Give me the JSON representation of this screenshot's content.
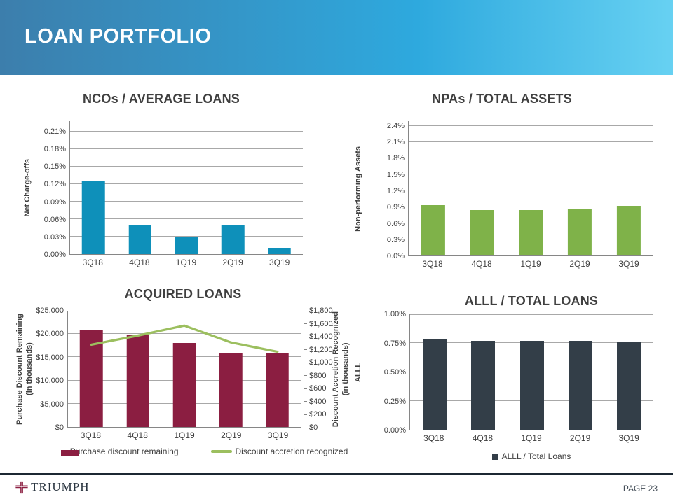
{
  "header": {
    "title": "LOAN PORTFOLIO"
  },
  "footer": {
    "brand": "TRIUMPH",
    "page_label": "PAGE 23"
  },
  "palette": {
    "header_gradient_left": "#3C7EAC",
    "header_gradient_mid": "#2EA9DE",
    "header_gradient_right": "#67D1F2",
    "ncos_bar": "#0E90BA",
    "npas_bar": "#7FB249",
    "purchase_discount_bar": "#8B1E41",
    "accretion_line": "#9CBF5F",
    "alll_bar": "#333E48",
    "footer_divider": "#1C2833",
    "logo_cross": "#8B1E41",
    "chart_text": "#404040"
  },
  "chart_data": [
    {
      "id": "ncos",
      "type": "bar",
      "title": "NCOs / AVERAGE LOANS",
      "ylabel": "Net Charge-offs",
      "categories": [
        "3Q18",
        "4Q18",
        "1Q19",
        "2Q19",
        "3Q19"
      ],
      "values": [
        0.125,
        0.05,
        0.03,
        0.05,
        0.01
      ],
      "bar_color": "#0E90BA",
      "grid": true,
      "yaxis": {
        "max": 0.228,
        "ticks": [
          0,
          0.03,
          0.06,
          0.09,
          0.12,
          0.15,
          0.18,
          0.21
        ],
        "tick_labels": [
          "0.00%",
          "0.03%",
          "0.06%",
          "0.09%",
          "0.12%",
          "0.15%",
          "0.18%",
          "0.21%"
        ]
      }
    },
    {
      "id": "npas",
      "type": "bar",
      "title": "NPAs / TOTAL ASSETS",
      "ylabel": "Non-performing Assets",
      "categories": [
        "3Q18",
        "4Q18",
        "1Q19",
        "2Q19",
        "3Q19"
      ],
      "values": [
        0.93,
        0.84,
        0.84,
        0.87,
        0.92
      ],
      "bar_color": "#7FB249",
      "grid": true,
      "yaxis": {
        "max": 2.49,
        "ticks": [
          0,
          0.3,
          0.6,
          0.9,
          1.2,
          1.5,
          1.8,
          2.1,
          2.4
        ],
        "tick_labels": [
          "0.0%",
          "0.3%",
          "0.6%",
          "0.9%",
          "1.2%",
          "1.5%",
          "1.8%",
          "2.1%",
          "2.4%"
        ]
      }
    },
    {
      "id": "acquired",
      "type": "bar+line",
      "title": "ACQUIRED LOANS",
      "ylabel_left": {
        "line1": "Purchase Discount Remaining",
        "line2": "(in thousands)"
      },
      "ylabel_right": {
        "line1": "Discount Accretion Recognized",
        "line2": "(in thousands)"
      },
      "categories": [
        "3Q18",
        "4Q18",
        "1Q19",
        "2Q19",
        "3Q19"
      ],
      "series": [
        {
          "name": "Purchase discount remaining",
          "type": "bar",
          "axis": "left",
          "color": "#8B1E41",
          "values": [
            21000,
            19700,
            18000,
            16000,
            15800
          ]
        },
        {
          "name": "Discount accretion recognized",
          "type": "line",
          "axis": "right",
          "color": "#9CBF5F",
          "values": [
            1275,
            1415,
            1570,
            1310,
            1165
          ]
        }
      ],
      "grid": true,
      "yaxis": {
        "max": 25000,
        "ticks": [
          0,
          5000,
          10000,
          15000,
          20000,
          25000
        ],
        "tick_labels": [
          "$0",
          "$5,000",
          "$10,000",
          "$15,000",
          "$20,000",
          "$25,000"
        ]
      },
      "yaxis_right": {
        "max": 1800,
        "ticks": [
          0,
          200,
          400,
          600,
          800,
          1000,
          1200,
          1400,
          1600,
          1800
        ],
        "tick_labels": [
          "$0",
          "$200",
          "$400",
          "$600",
          "$800",
          "$1,000",
          "$1,200",
          "$1,400",
          "$1,600",
          "$1,800"
        ]
      },
      "legend": [
        {
          "label": "Purchase discount remaining",
          "swatch": "bar",
          "color": "#8B1E41"
        },
        {
          "label": "Discount accretion recognized",
          "swatch": "line",
          "color": "#9CBF5F"
        }
      ]
    },
    {
      "id": "alll",
      "type": "bar",
      "title": "ALLL / TOTAL LOANS",
      "ylabel": "ALLL",
      "categories": [
        "3Q18",
        "4Q18",
        "1Q19",
        "2Q19",
        "3Q19"
      ],
      "values": [
        0.78,
        0.77,
        0.77,
        0.77,
        0.76
      ],
      "bar_color": "#333E48",
      "grid": true,
      "yaxis": {
        "max": 1.0,
        "ticks": [
          0,
          0.25,
          0.5,
          0.75,
          1.0
        ],
        "tick_labels": [
          "0.00%",
          "0.25%",
          "0.50%",
          "0.75%",
          "1.00%"
        ]
      },
      "legend": [
        {
          "label": "ALLL / Total Loans",
          "swatch": "square",
          "color": "#333E48"
        }
      ]
    }
  ]
}
